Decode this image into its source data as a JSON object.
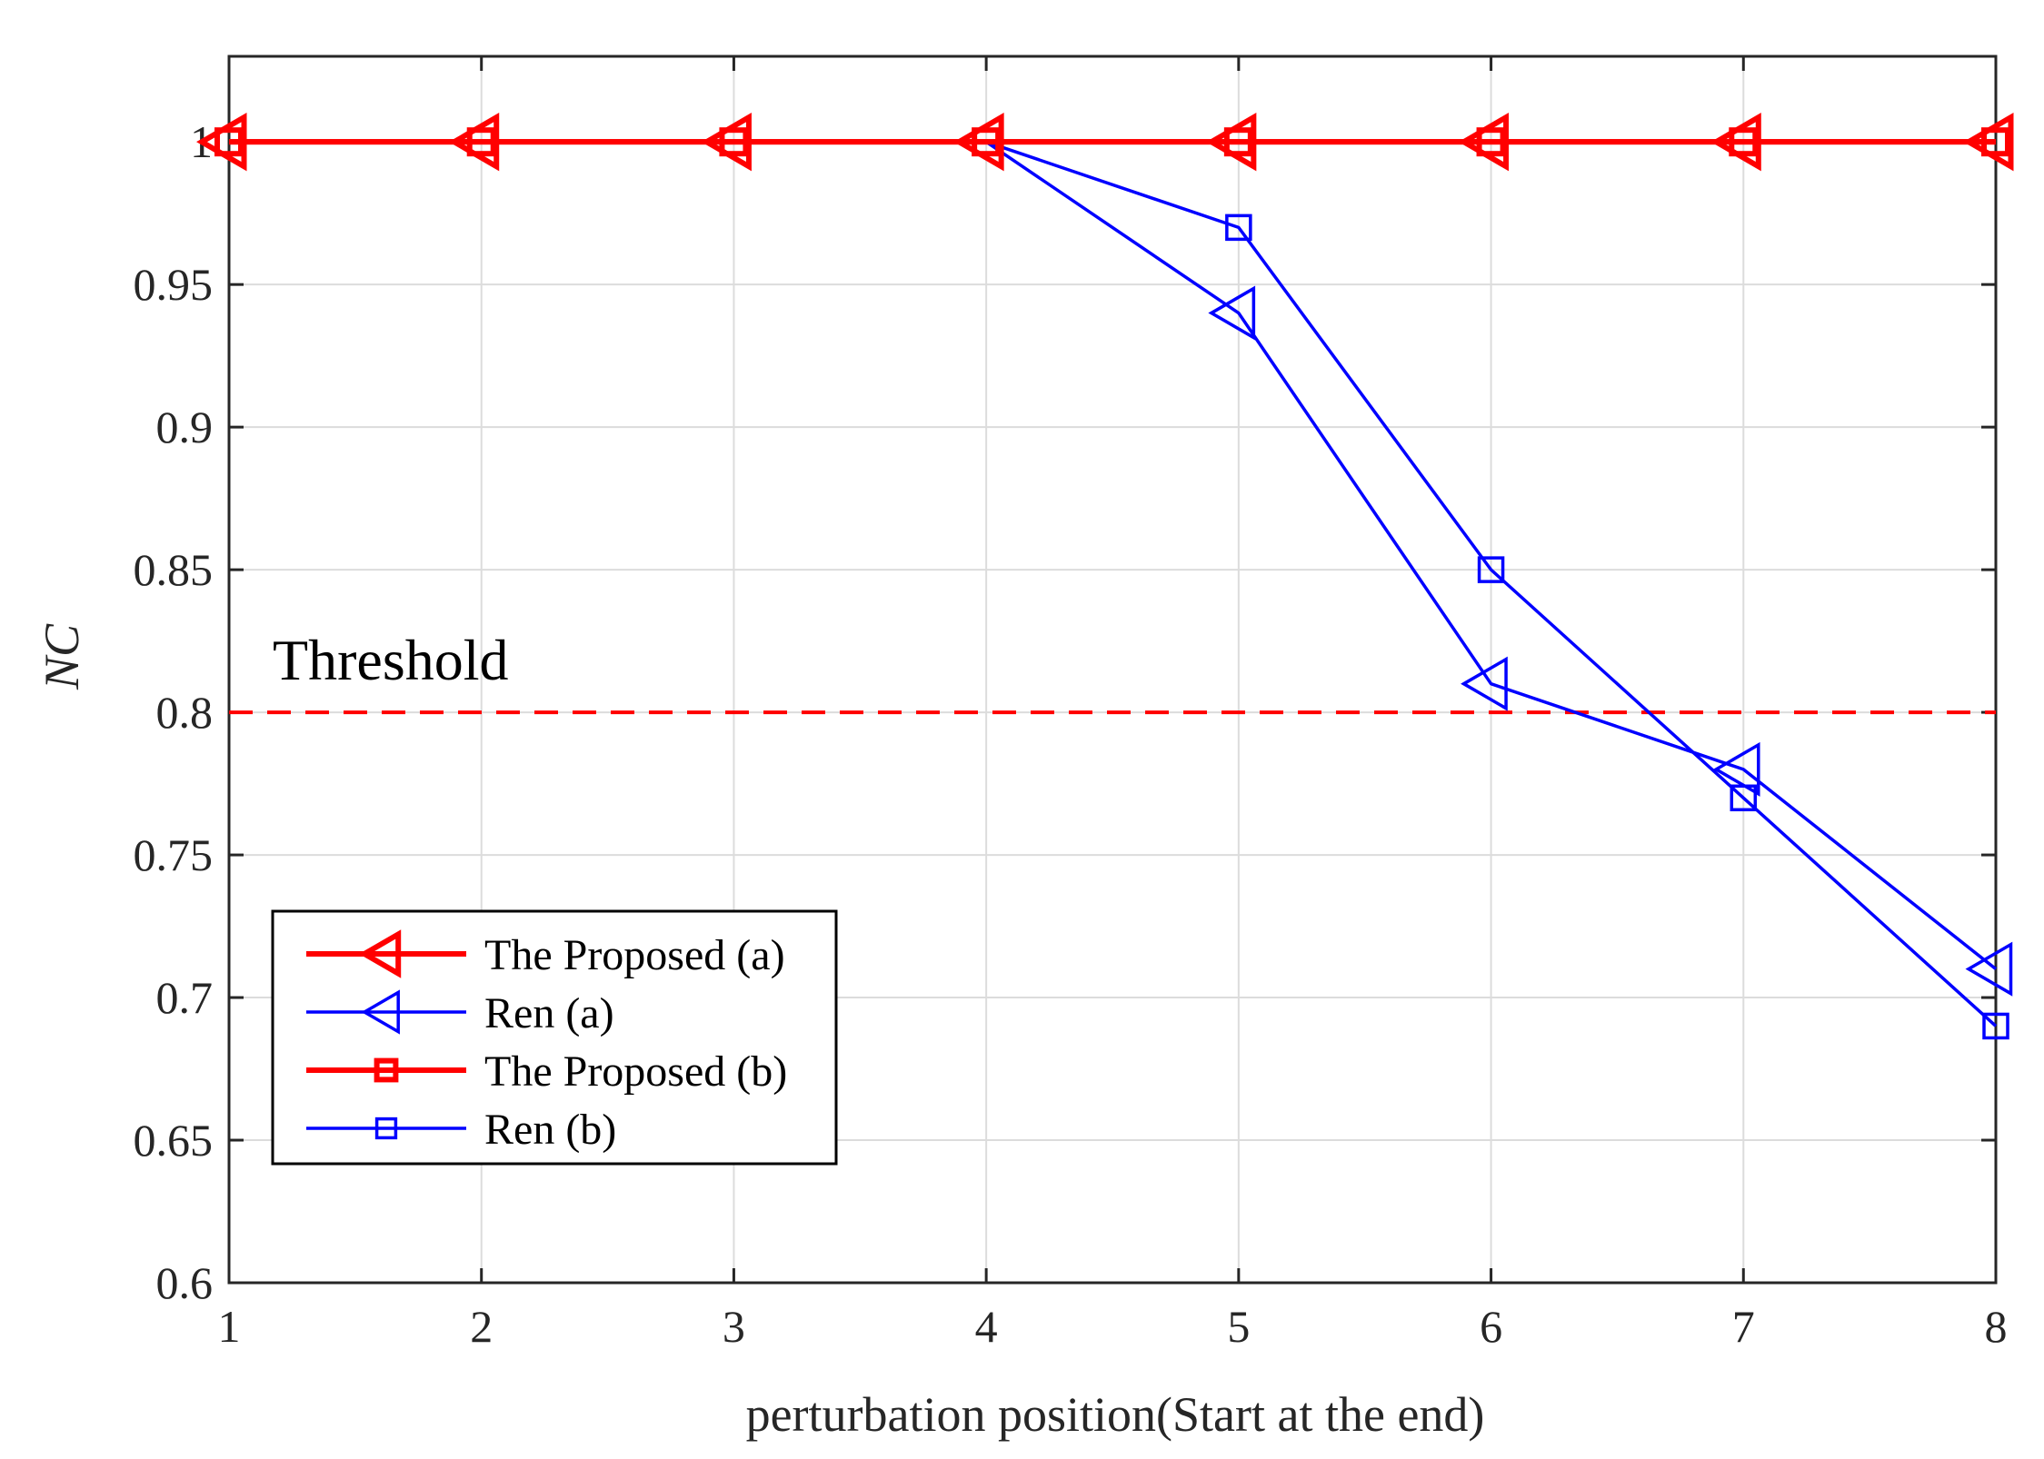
{
  "chart_data": {
    "type": "line",
    "title": "",
    "xlabel": "perturbation position(Start at the end)",
    "ylabel": "NC",
    "x": [
      1,
      2,
      3,
      4,
      5,
      6,
      7,
      8
    ],
    "xlim": [
      1,
      8
    ],
    "ylim": [
      0.6,
      1.03
    ],
    "xticks": [
      1,
      2,
      3,
      4,
      5,
      6,
      7,
      8
    ],
    "yticks": [
      0.6,
      0.65,
      0.7,
      0.75,
      0.8,
      0.85,
      0.9,
      0.95,
      1
    ],
    "ytick_labels": [
      "0.6",
      "0.65",
      "0.7",
      "0.75",
      "0.8",
      "0.85",
      "0.9",
      "0.95",
      "1"
    ],
    "grid": true,
    "legend_position": "bottom-left",
    "series": [
      {
        "name": "The Proposed (a)",
        "color": "#ff0000",
        "marker": "triangle-left",
        "weight": "bold",
        "values": [
          1,
          1,
          1,
          1,
          1,
          1,
          1,
          1
        ]
      },
      {
        "name": "Ren (a)",
        "color": "#0000ff",
        "marker": "triangle-left",
        "weight": "normal",
        "values": [
          1,
          1,
          1,
          1,
          0.94,
          0.81,
          0.78,
          0.71
        ]
      },
      {
        "name": "The Proposed (b)",
        "color": "#ff0000",
        "marker": "square",
        "weight": "bold",
        "values": [
          1,
          1,
          1,
          1,
          1,
          1,
          1,
          1
        ]
      },
      {
        "name": "Ren (b)",
        "color": "#0000ff",
        "marker": "square",
        "weight": "normal",
        "values": [
          1,
          1,
          1,
          1,
          0.97,
          0.85,
          0.77,
          0.69
        ]
      }
    ],
    "threshold": {
      "value": 0.8,
      "label": "Threshold",
      "color": "#ff0000",
      "style": "dashed"
    }
  }
}
